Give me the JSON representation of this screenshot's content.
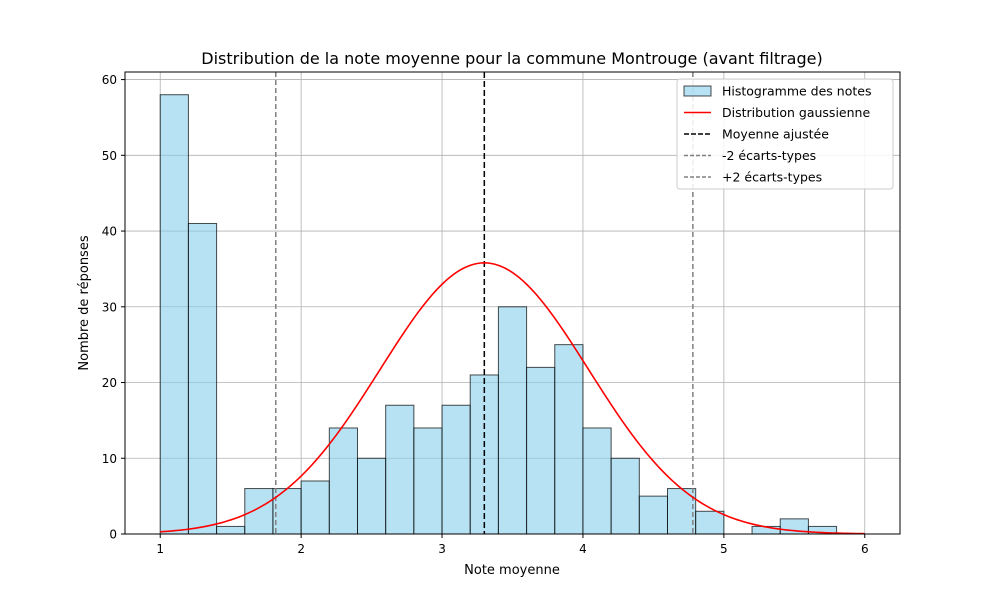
{
  "chart_data": {
    "type": "bar",
    "title": "Distribution de la note moyenne pour la commune Montrouge (avant filtrage)",
    "xlabel": "Note moyenne",
    "ylabel": "Nombre de réponses",
    "xlim": [
      0.75,
      6.25
    ],
    "ylim": [
      0,
      61
    ],
    "xticks": [
      1,
      2,
      3,
      4,
      5,
      6
    ],
    "yticks": [
      0,
      10,
      20,
      30,
      40,
      50,
      60
    ],
    "grid": true,
    "legend_position": "top-right",
    "histogram": {
      "name": "Histogramme des notes",
      "color": "#87ceeb",
      "edge_color": "#000000",
      "bin_start": 1.0,
      "bin_width": 0.2,
      "counts": [
        58,
        41,
        1,
        6,
        6,
        7,
        14,
        10,
        17,
        14,
        17,
        21,
        30,
        22,
        25,
        14,
        10,
        5,
        6,
        3,
        0,
        1,
        2,
        1,
        0
      ]
    },
    "gaussian": {
      "name": "Distribution gaussienne",
      "color": "#ff0000",
      "mean": 3.3,
      "std": 0.74,
      "peak": 35.8,
      "x_range": [
        1,
        6
      ]
    },
    "vlines": [
      {
        "name": "Moyenne ajustée",
        "x": 3.3,
        "color": "#000000",
        "style": "dashed"
      },
      {
        "name": "-2 écarts-types",
        "x": 1.82,
        "color": "#808080",
        "style": "dashed"
      },
      {
        "name": "+2 écarts-types",
        "x": 4.78,
        "color": "#808080",
        "style": "dashed"
      }
    ]
  }
}
